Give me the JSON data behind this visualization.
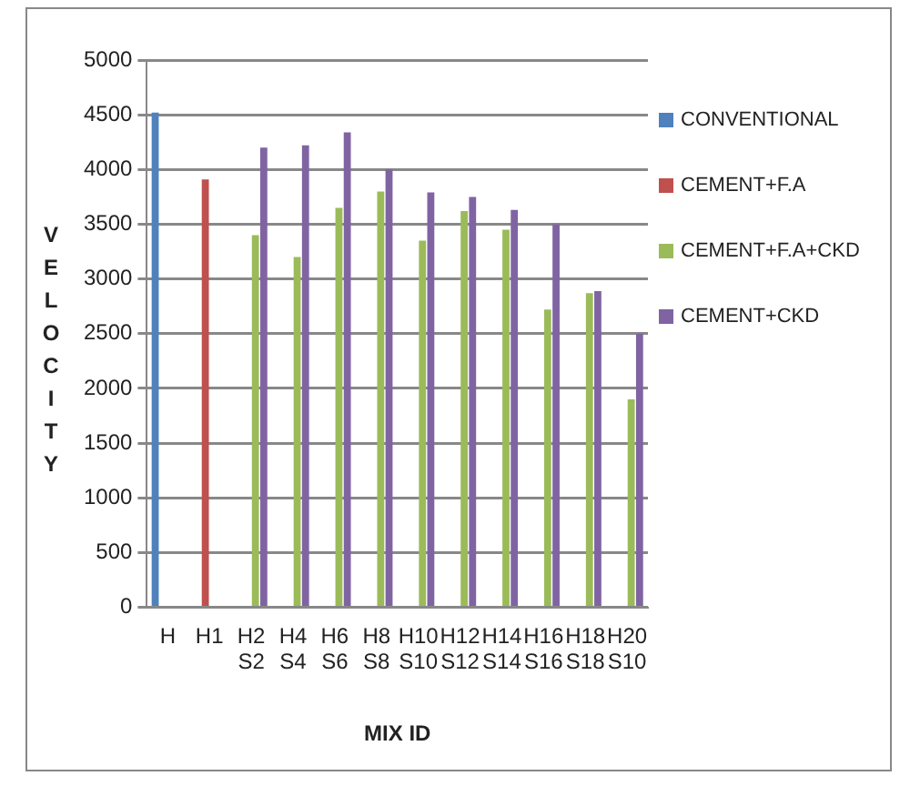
{
  "chart_data": {
    "type": "bar",
    "ylabel": "VELOCITY",
    "xlabel": "MIX ID",
    "categories": [
      "H",
      "H1",
      "H2 S2",
      "H4 S4",
      "H6 S6",
      "H8 S8",
      "H10 S10",
      "H12 S12",
      "H14 S14",
      "H16 S16",
      "H18 S18",
      "H20 S10"
    ],
    "series": [
      {
        "name": "CONVENTIONAL",
        "color": "#4f81bd",
        "values": [
          4520,
          null,
          null,
          null,
          null,
          null,
          null,
          null,
          null,
          null,
          null,
          null
        ]
      },
      {
        "name": "CEMENT+F.A",
        "color": "#c0504d",
        "values": [
          null,
          3910,
          null,
          null,
          null,
          null,
          null,
          null,
          null,
          null,
          null,
          null
        ]
      },
      {
        "name": "CEMENT+F.A+CKD",
        "color": "#9bbb59",
        "values": [
          null,
          null,
          3400,
          3200,
          3650,
          3800,
          3350,
          3620,
          3450,
          2720,
          2870,
          1900
        ]
      },
      {
        "name": "CEMENT+CKD",
        "color": "#8064a2",
        "values": [
          null,
          null,
          4200,
          4220,
          4340,
          4000,
          3790,
          3750,
          3630,
          3500,
          2890,
          2500
        ]
      }
    ],
    "ylim": [
      0,
      5000
    ],
    "yticks": [
      0,
      500,
      1000,
      1500,
      2000,
      2500,
      3000,
      3500,
      4000,
      4500,
      5000
    ],
    "grid": "y",
    "legend": "right"
  }
}
